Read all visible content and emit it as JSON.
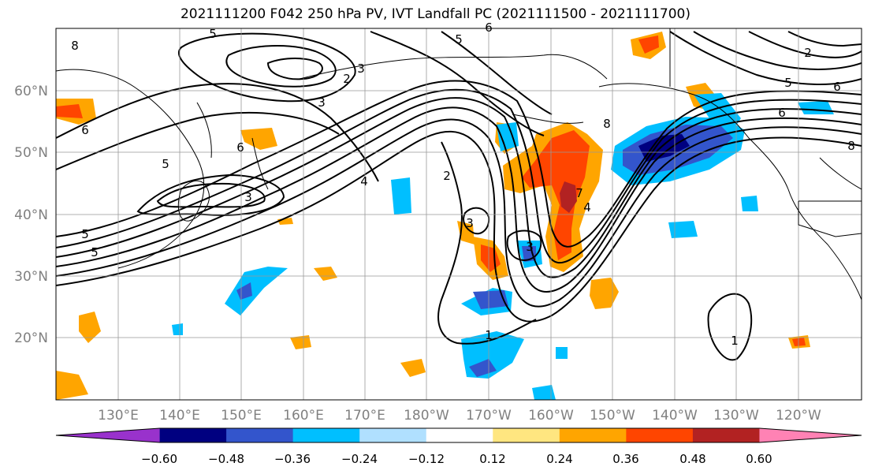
{
  "title": "2021111200 F042 250 hPa PV, IVT Landfall PC (2021111500 - 2021111700)",
  "map": {
    "lon_labels": [
      "130°E",
      "140°E",
      "150°E",
      "160°E",
      "170°E",
      "180°W",
      "170°W",
      "160°W",
      "150°W",
      "140°W",
      "130°W",
      "120°W"
    ],
    "lat_labels": [
      "60°N",
      "50°N",
      "40°N",
      "30°N",
      "20°N"
    ],
    "contour_labels": [
      "8",
      "5",
      "6",
      "2",
      "3",
      "5",
      "6",
      "5",
      "3",
      "4",
      "2",
      "3",
      "8",
      "5",
      "6",
      "8",
      "5",
      "6",
      "6",
      "2",
      "7",
      "4",
      "5",
      "3",
      "3",
      "1",
      "1"
    ]
  },
  "colorbar": {
    "ticks": [
      "−0.60",
      "−0.48",
      "−0.36",
      "−0.24",
      "−0.12",
      "0.12",
      "0.24",
      "0.36",
      "0.48",
      "0.60"
    ],
    "colors": [
      "#9932cc",
      "#000080",
      "#3355cc",
      "#00bfff",
      "#b0e0ff",
      "#ffffff",
      "#ffe680",
      "#ffa500",
      "#ff4500",
      "#b22222",
      "#ff82b4"
    ]
  }
}
